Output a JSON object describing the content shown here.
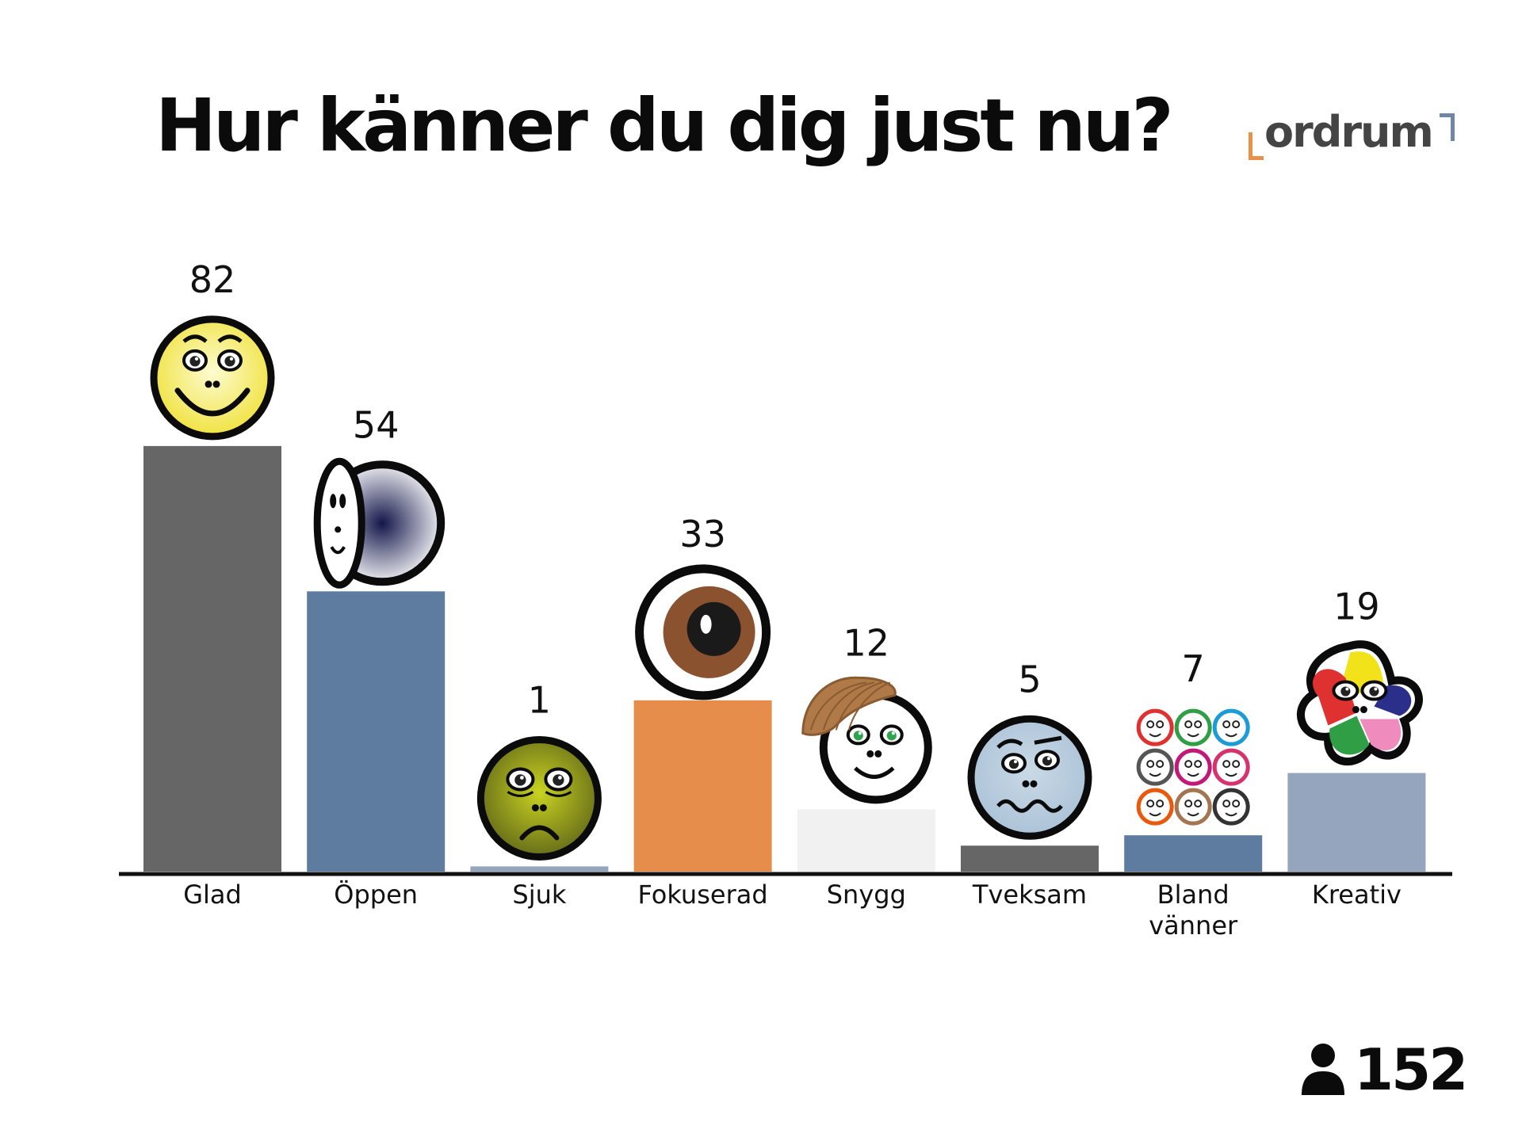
{
  "header": {
    "title": "Hur känner du dig just nu?",
    "logo_text": "ordrum"
  },
  "footer": {
    "participant_icon": "person-icon",
    "participant_count": "152"
  },
  "colors": {
    "gray": "#666666",
    "blue": "#5e7ca0",
    "lightblue": "#94a5bd",
    "orange": "#e68d4c",
    "white": "#f1f1f1"
  },
  "chart_data": {
    "type": "bar",
    "title": "Hur känner du dig just nu?",
    "categories": [
      "Glad",
      "Öppen",
      "Sjuk",
      "Fokuserad",
      "Snygg",
      "Tveksam",
      "Bland vänner",
      "Kreativ"
    ],
    "category_lines": [
      [
        "Glad"
      ],
      [
        "Öppen"
      ],
      [
        "Sjuk"
      ],
      [
        "Fokuserad"
      ],
      [
        "Snygg"
      ],
      [
        "Tveksam"
      ],
      [
        "Bland",
        "vänner"
      ],
      [
        "Kreativ"
      ]
    ],
    "values": [
      82,
      54,
      1,
      33,
      12,
      5,
      7,
      19
    ],
    "bar_colors": [
      "#666666",
      "#5e7ca0",
      "#94a5bd",
      "#e68d4c",
      "#f1f1f1",
      "#666666",
      "#5e7ca0",
      "#94a5bd"
    ],
    "icons": [
      "happy-face-icon",
      "open-door-face-icon",
      "sick-face-icon",
      "eye-icon",
      "handsome-face-icon",
      "doubtful-face-icon",
      "group-faces-icon",
      "creative-face-icon"
    ],
    "ylim": [
      0,
      82
    ],
    "xlabel": "",
    "ylabel": "",
    "grid": false,
    "legend": "none"
  }
}
